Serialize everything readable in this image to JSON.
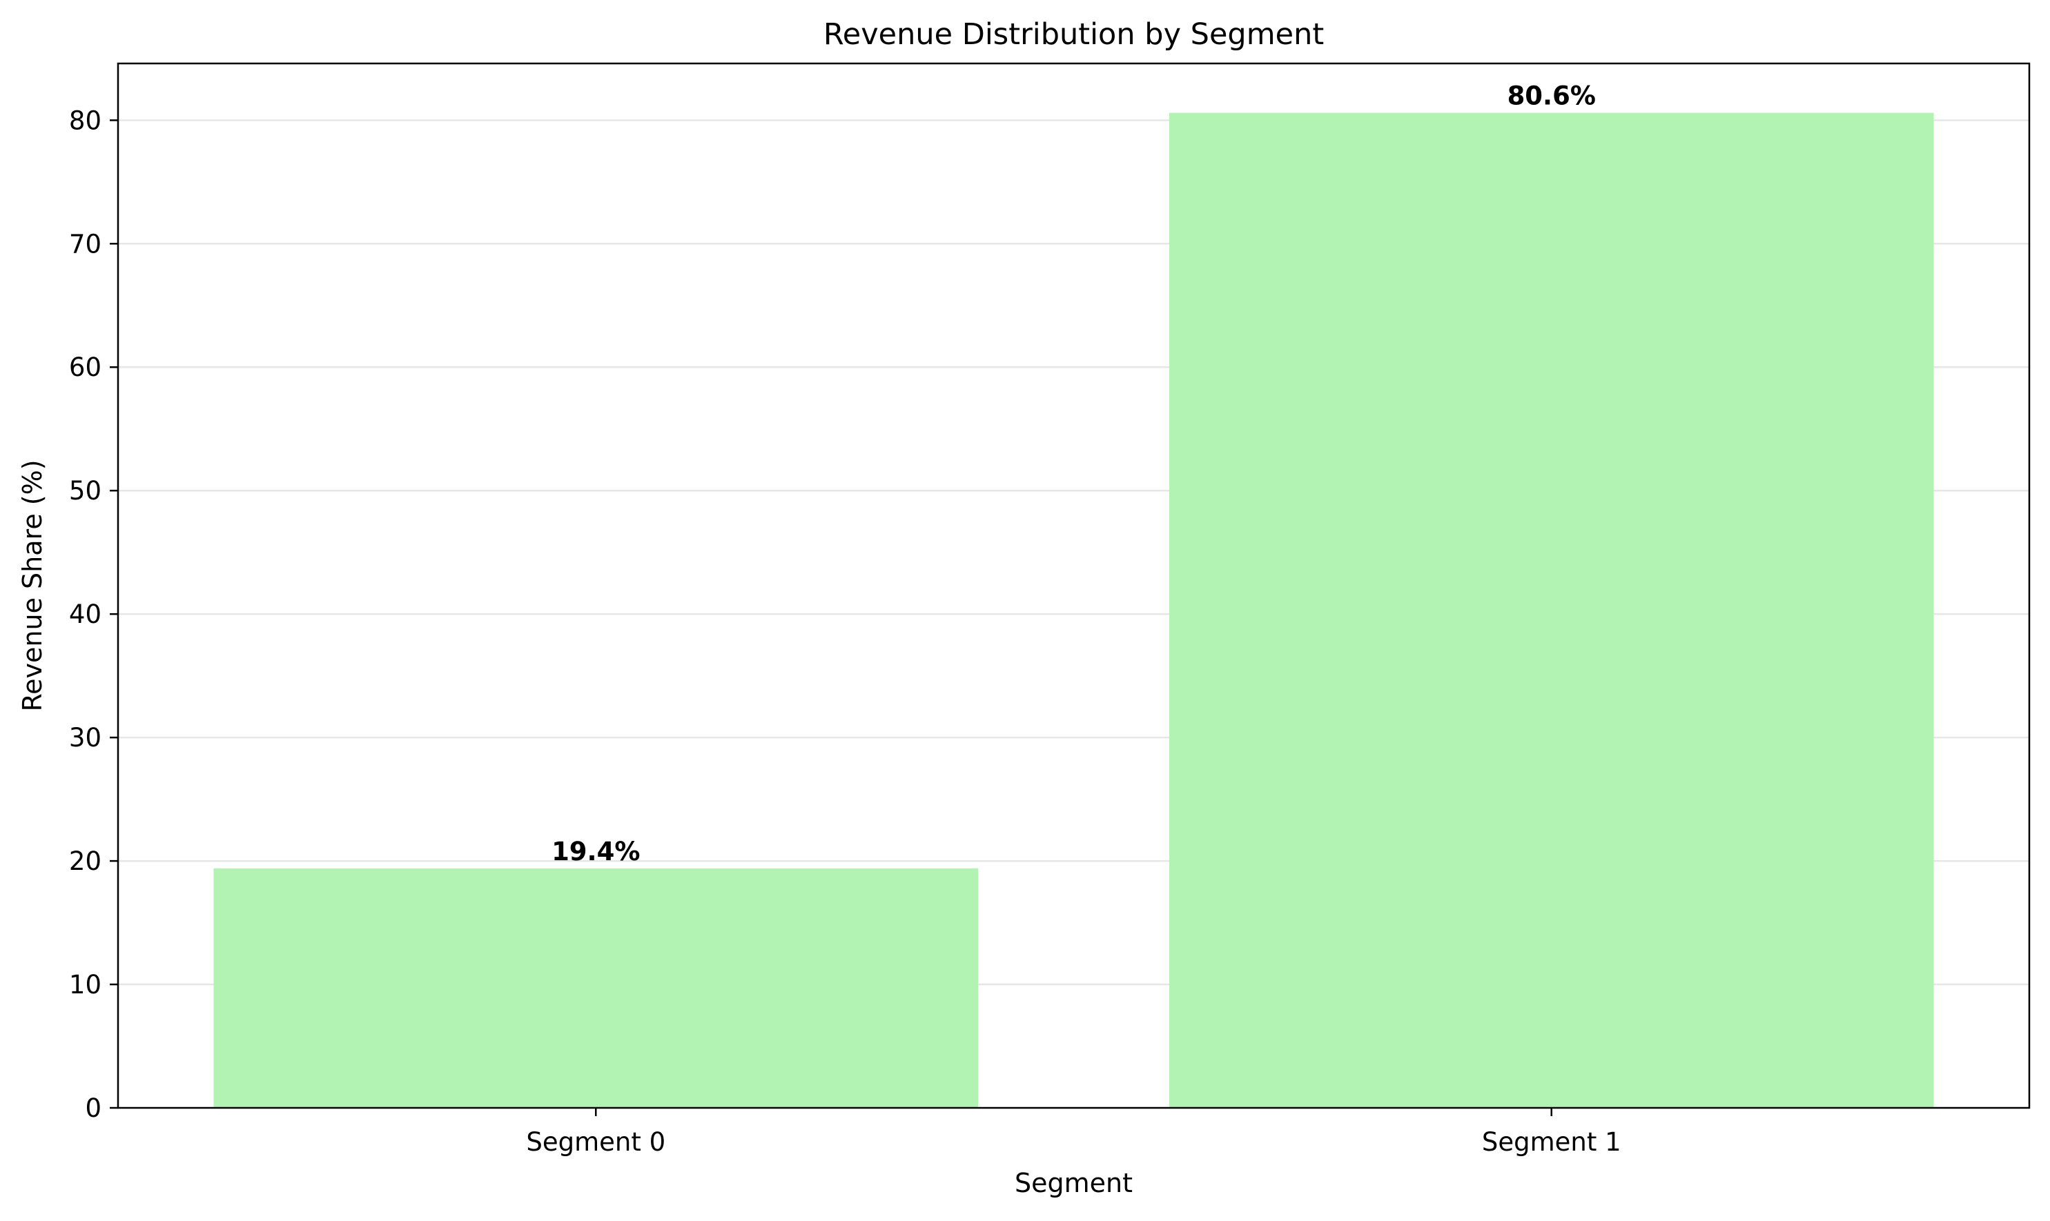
{
  "chart_data": {
    "type": "bar",
    "title": "Revenue Distribution by Segment",
    "xlabel": "Segment",
    "ylabel": "Revenue Share (%)",
    "categories": [
      "Segment 0",
      "Segment 1"
    ],
    "values": [
      19.4,
      80.6
    ],
    "value_labels": [
      "19.4%",
      "80.6%"
    ],
    "ylim": [
      0,
      84.6
    ],
    "yticks": [
      0,
      10,
      20,
      30,
      40,
      50,
      60,
      70,
      80
    ],
    "grid": "horizontal",
    "legend": "none",
    "colors": {
      "bar": "#b2f2b2",
      "grid": "#e6e6e6",
      "axes": "#000000"
    }
  }
}
